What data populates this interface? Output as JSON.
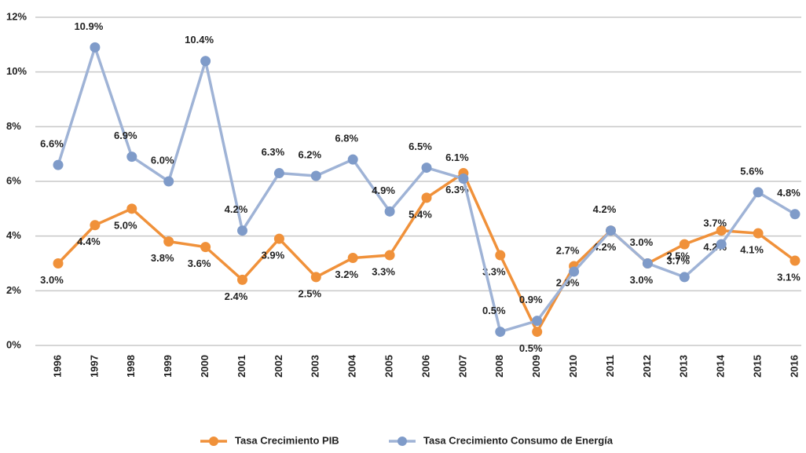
{
  "chart_data": {
    "type": "line",
    "categories": [
      "1996",
      "1997",
      "1998",
      "1999",
      "2000",
      "2001",
      "2002",
      "2003",
      "2004",
      "2005",
      "2006",
      "2007",
      "2008",
      "2009",
      "2010",
      "2011",
      "2012",
      "2013",
      "2014",
      "2015",
      "2016"
    ],
    "series": [
      {
        "name": "Tasa Crecimiento PIB",
        "color": "#f0913a",
        "values": [
          3.0,
          4.4,
          5.0,
          3.8,
          3.6,
          2.4,
          3.9,
          2.5,
          3.2,
          3.3,
          5.4,
          6.3,
          3.3,
          0.5,
          2.9,
          4.2,
          3.0,
          3.7,
          4.2,
          4.1,
          3.1
        ],
        "value_labels": [
          "3.0%",
          "4.4%",
          "5.0%",
          "3.8%",
          "3.6%",
          "2.4%",
          "3.9%",
          "2.5%",
          "3.2%",
          "3.3%",
          "5.4%",
          "6.3%",
          "3.3%",
          "0.5%",
          "2.9%",
          "4.2%",
          "3.0%",
          "3.7%",
          "4.2%",
          "4.1%",
          "3.1%"
        ]
      },
      {
        "name": "Tasa Crecimiento Consumo de Energía",
        "color": "#9fb3d6",
        "values": [
          6.6,
          10.9,
          6.9,
          6.0,
          10.4,
          4.2,
          6.3,
          6.2,
          6.8,
          4.9,
          6.5,
          6.1,
          0.5,
          0.9,
          2.7,
          4.2,
          3.0,
          2.5,
          3.7,
          5.6,
          4.8
        ],
        "value_labels": [
          "6.6%",
          "10.9%",
          "6.9%",
          "6.0%",
          "10.4%",
          "4.2%",
          "6.3%",
          "6.2%",
          "6.8%",
          "4.9%",
          "6.5%",
          "6.1%",
          "0.5%",
          "0.9%",
          "2.7%",
          "4.2%",
          "3.0%",
          "2.5%",
          "3.7%",
          "5.6%",
          "4.8%"
        ]
      }
    ],
    "ylim": [
      0,
      12
    ],
    "yticks": [
      {
        "value": 0,
        "label": "0%"
      },
      {
        "value": 2,
        "label": "2%"
      },
      {
        "value": 4,
        "label": "4%"
      },
      {
        "value": 6,
        "label": "6%"
      },
      {
        "value": 8,
        "label": "8%"
      },
      {
        "value": 10,
        "label": "10%"
      },
      {
        "value": 12,
        "label": "12%"
      }
    ],
    "grid": true,
    "legend": "bottom"
  }
}
